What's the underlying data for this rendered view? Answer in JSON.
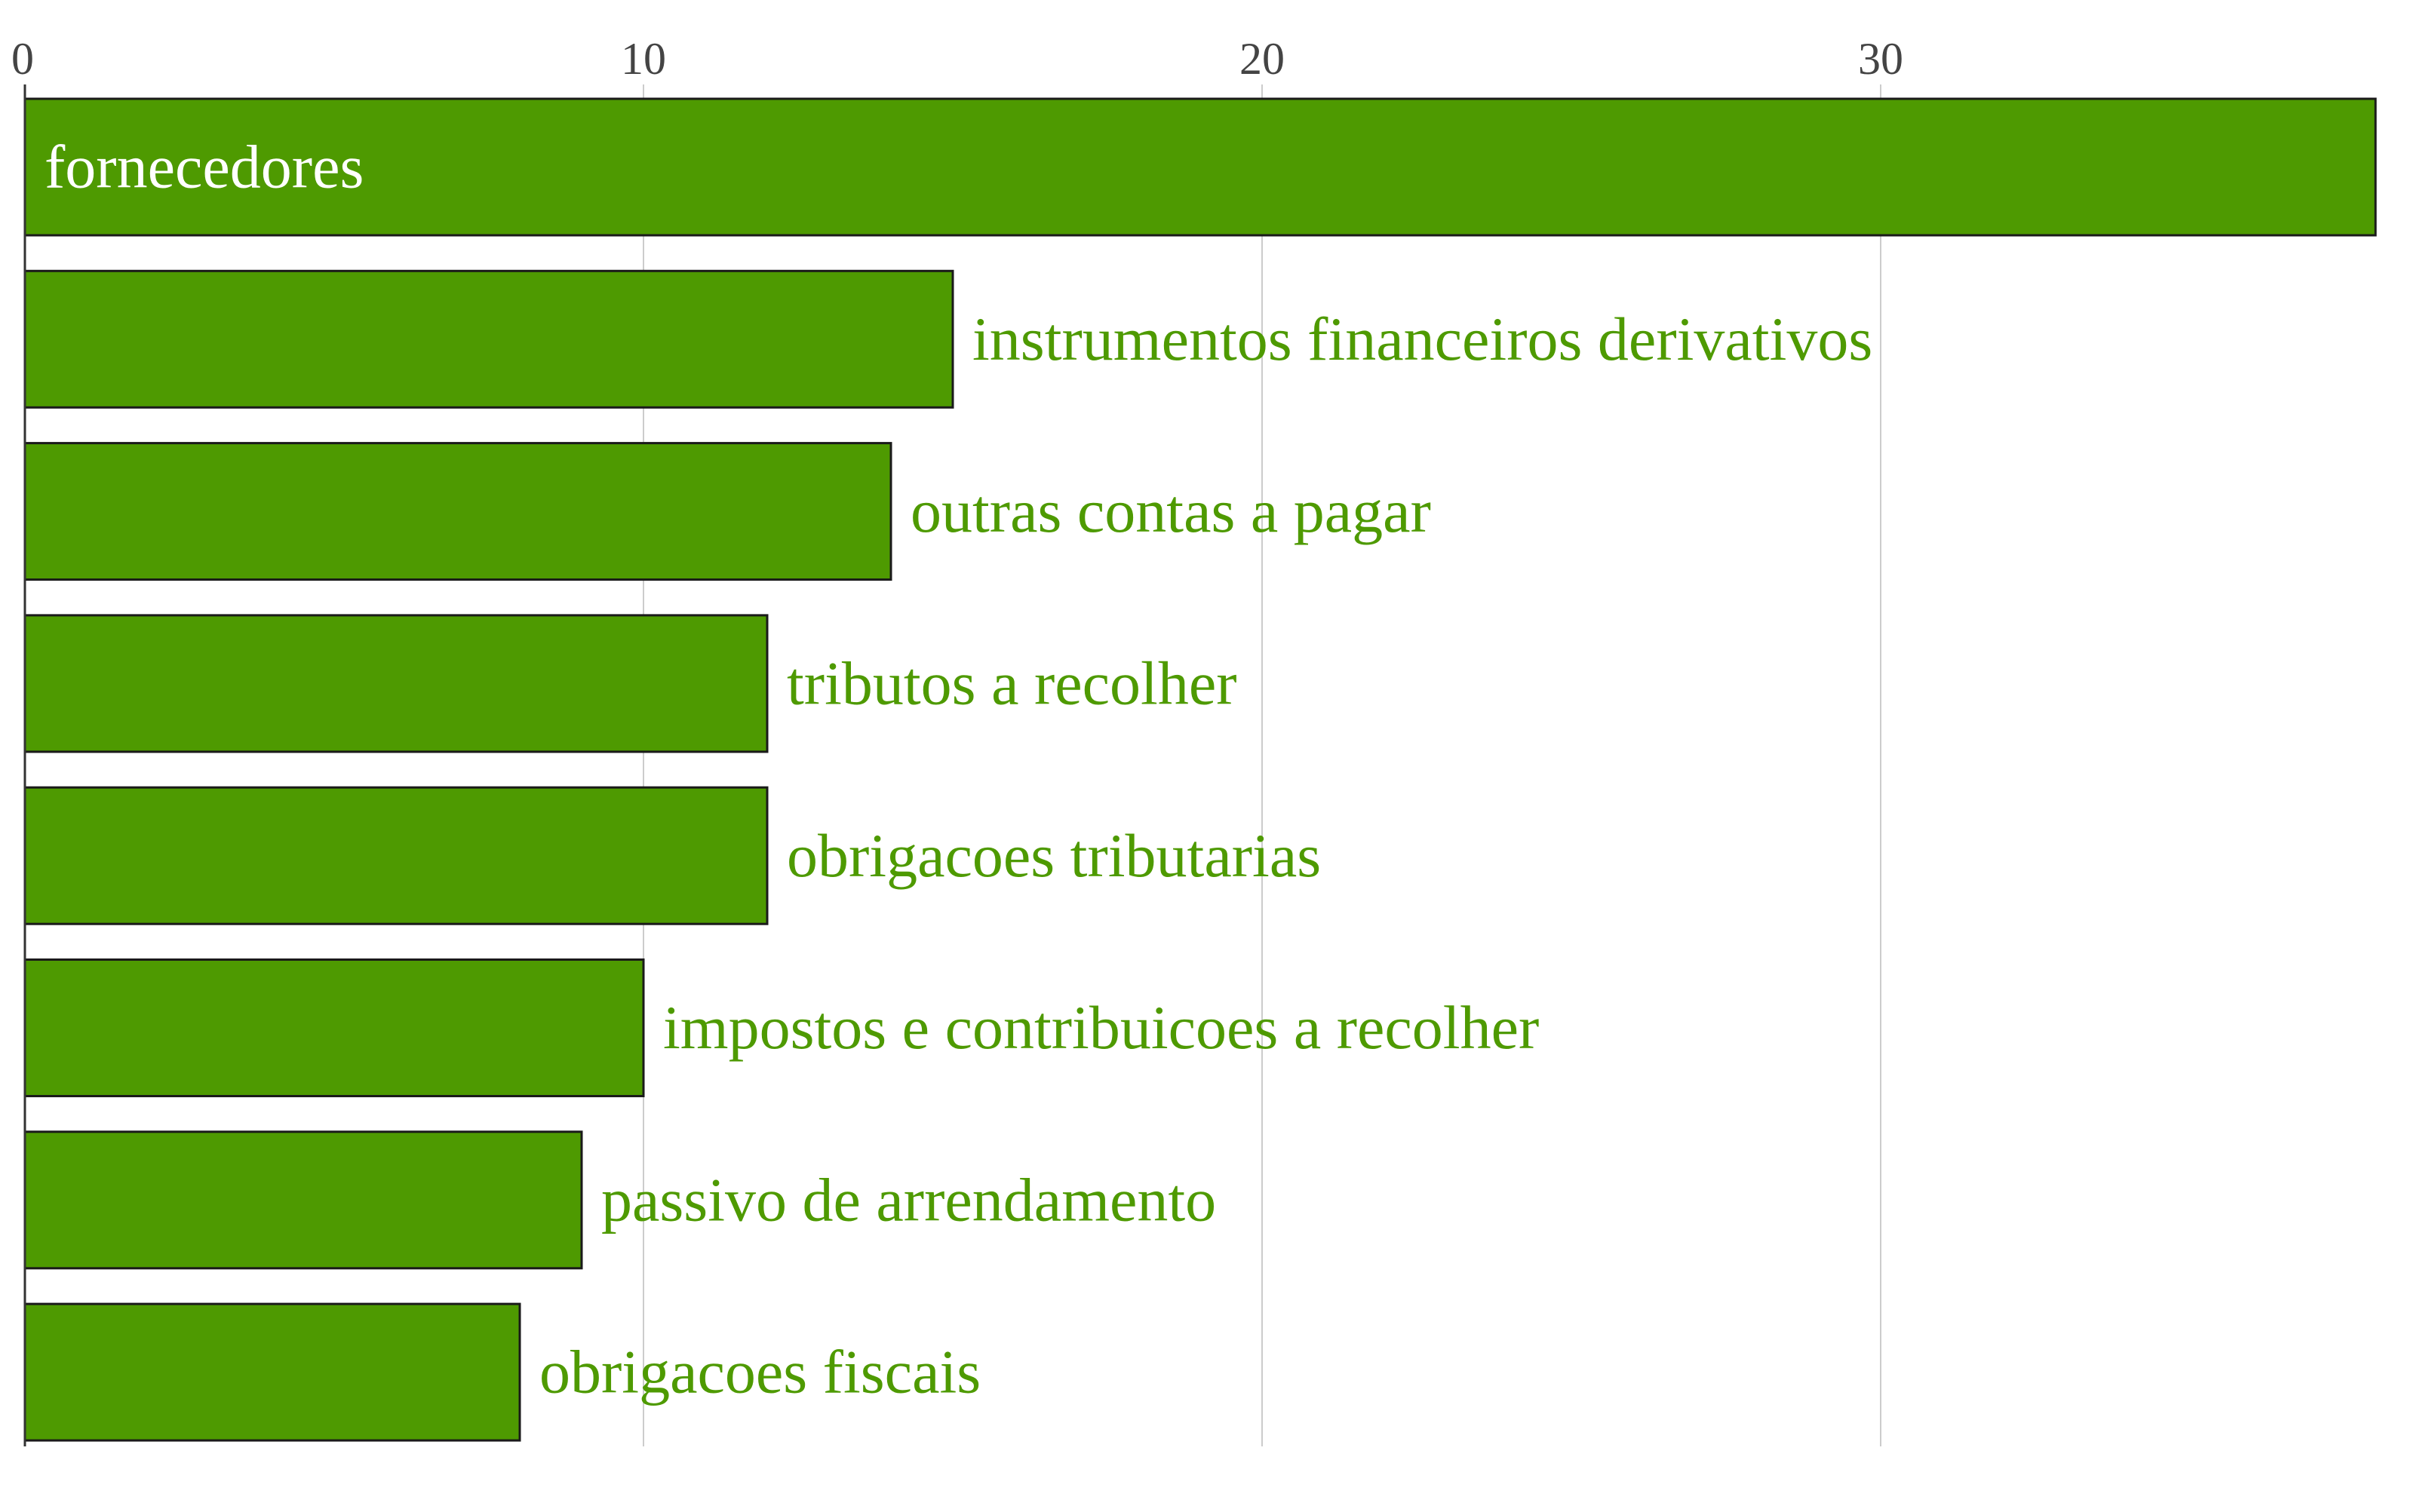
{
  "chart_data": {
    "type": "bar",
    "orientation": "horizontal",
    "title": "",
    "xlabel": "",
    "ylabel": "",
    "x_axis_position": "top",
    "xlim": [
      0,
      38
    ],
    "x_ticks": [
      0,
      10,
      20,
      30
    ],
    "grid": "vertical",
    "bar_color": "#4e9a01",
    "label_inside_color": "#ffffff",
    "label_outside_color": "#4e9a01",
    "categories": [
      "fornecedores",
      "instrumentos financeiros derivativos",
      "outras contas a pagar",
      "tributos a recolher",
      "obrigacoes tributarias",
      "impostos e contribuicoes a recolher",
      "passivo de arrendamento",
      "obrigacoes fiscais"
    ],
    "values": [
      38,
      15,
      14,
      12,
      12,
      10,
      9,
      8
    ]
  }
}
